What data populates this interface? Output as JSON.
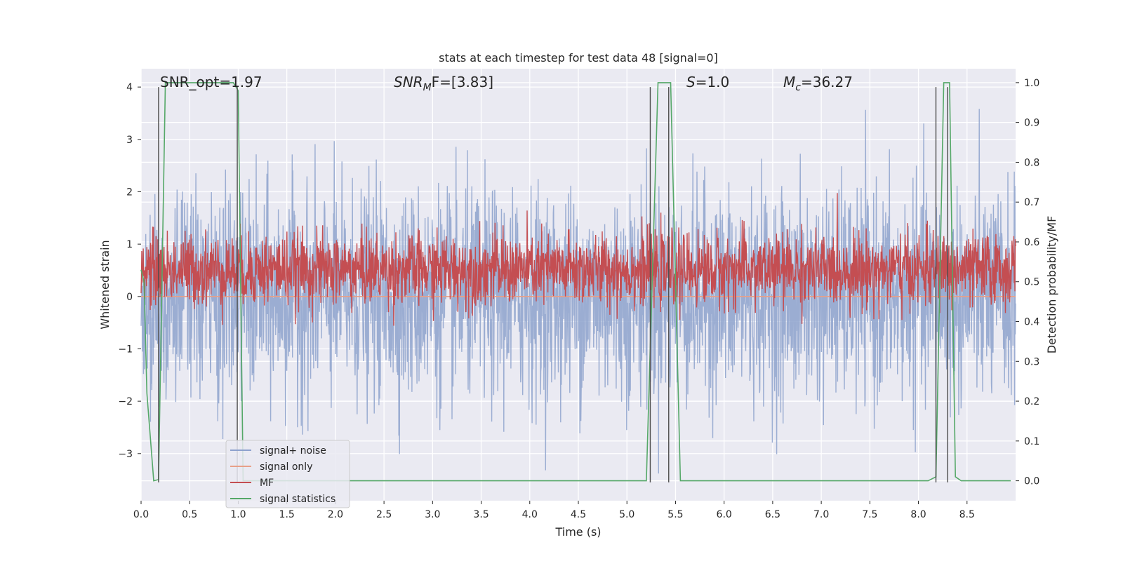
{
  "chart_data": {
    "type": "line",
    "title": "stats at each timestep for test data 48 [signal=0]",
    "xlabel": "Time (s)",
    "ylabel_left": "Whitened strain",
    "ylabel_right": "Detection probability/MF",
    "xlim": [
      0.0,
      9.0
    ],
    "ylim_left": [
      -3.9,
      4.35
    ],
    "ylim_right": [
      -0.05,
      1.035
    ],
    "x_ticks": [
      0.0,
      0.5,
      1.0,
      1.5,
      2.0,
      2.5,
      3.0,
      3.5,
      4.0,
      4.5,
      5.0,
      5.5,
      6.0,
      6.5,
      7.0,
      7.5,
      8.0,
      8.5
    ],
    "x_tick_labels": [
      "0.0",
      "0.5",
      "1.0",
      "1.5",
      "2.0",
      "2.5",
      "3.0",
      "3.5",
      "4.0",
      "4.5",
      "5.0",
      "5.5",
      "6.0",
      "6.5",
      "7.0",
      "7.5",
      "8.0",
      "8.5"
    ],
    "y_left_ticks": [
      -3,
      -2,
      -1,
      0,
      1,
      2,
      3,
      4
    ],
    "y_left_tick_labels": [
      "−3",
      "−2",
      "−1",
      "0",
      "1",
      "2",
      "3",
      "4"
    ],
    "y_right_ticks": [
      0.0,
      0.1,
      0.2,
      0.3,
      0.4,
      0.5,
      0.6,
      0.7,
      0.8,
      0.9,
      1.0
    ],
    "y_right_tick_labels": [
      "0.0",
      "0.1",
      "0.2",
      "0.3",
      "0.4",
      "0.5",
      "0.6",
      "0.7",
      "0.8",
      "0.9",
      "1.0"
    ],
    "grid": true,
    "legend_position": "lower-left",
    "annotations": {
      "snr_opt": "SNR_opt=1.97",
      "snr_mf_base": "SNR",
      "snr_mf_sub": "M",
      "snr_mf_rest": "F=[3.83]",
      "s_var": "S",
      "s_rest": "=1.0",
      "mc_var": "M",
      "mc_sub": "c",
      "mc_rest": "=36.27"
    },
    "series": [
      {
        "name": "signal+ noise",
        "axis": "left",
        "color": "#8da2cd",
        "kind": "noise",
        "amplitude_std": 1.0,
        "x_range": [
          0.0,
          9.0
        ]
      },
      {
        "name": "signal only",
        "axis": "left",
        "color": "#e8a088",
        "kind": "constant",
        "x": [
          0.0,
          9.0
        ],
        "y": [
          0.0,
          0.0
        ]
      },
      {
        "name": "MF",
        "axis": "right",
        "color": "#c44e52",
        "kind": "noise",
        "mean": 0.53,
        "amplitude_std": 0.045,
        "x_range": [
          0.0,
          9.0
        ]
      },
      {
        "name": "signal statistics",
        "axis": "right",
        "color": "#55a868",
        "kind": "line",
        "x": [
          0.0,
          0.03,
          0.06,
          0.13,
          0.18,
          0.25,
          0.3,
          0.5,
          0.8,
          0.95,
          1.0,
          1.05,
          1.1,
          5.2,
          5.32,
          5.35,
          5.45,
          5.55,
          5.6,
          8.1,
          8.18,
          8.26,
          8.32,
          8.38,
          8.44,
          8.95
        ],
        "y": [
          0.53,
          0.5,
          0.22,
          0.0,
          0.003,
          1.0,
          1.0,
          1.0,
          1.0,
          1.0,
          0.98,
          0.0,
          0.0,
          0.0,
          1.0,
          1.0,
          1.0,
          0.0,
          0.0,
          0.0,
          0.01,
          1.0,
          1.0,
          0.01,
          0.0,
          0.0
        ]
      }
    ],
    "vertical_markers": {
      "color": "#4c4c4c",
      "x": [
        0.18,
        0.99,
        5.24,
        5.43,
        8.18,
        8.3
      ],
      "y_top": 4.0,
      "y_bottom": [
        -3.55,
        -3.55,
        -3.55,
        -3.55,
        -3.55,
        -3.55
      ]
    }
  },
  "legend": {
    "items": [
      {
        "label": "signal+ noise",
        "color": "#8da2cd"
      },
      {
        "label": "signal only",
        "color": "#e8a088"
      },
      {
        "label": "MF",
        "color": "#c44e52"
      },
      {
        "label": "signal statistics",
        "color": "#55a868"
      }
    ]
  }
}
